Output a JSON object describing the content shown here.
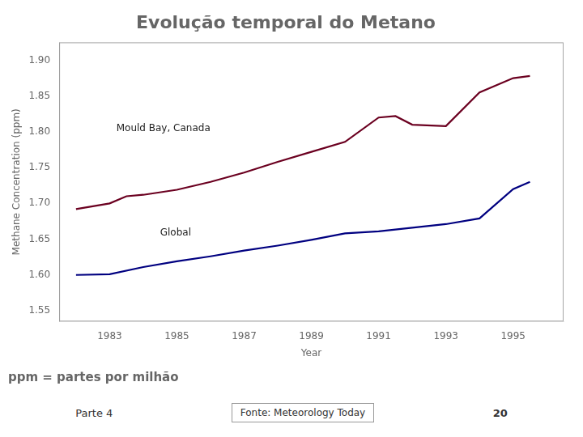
{
  "chart_data": {
    "type": "line",
    "title": "Evolução temporal do Metano",
    "subtitle": "ppm = partes por milhão",
    "x_label": "Year",
    "y_label": "Methane Concentration (ppm)",
    "series": [
      {
        "name": "Global",
        "color": "#000080",
        "x": [
          1982,
          1983,
          1984,
          1985,
          1986,
          1987,
          1988,
          1989,
          1990,
          1991,
          1992,
          1993,
          1994,
          1995,
          1995.5
        ],
        "values": [
          1.6,
          1.601,
          1.611,
          1.619,
          1.626,
          1.634,
          1.641,
          1.649,
          1.658,
          1.661,
          1.666,
          1.671,
          1.679,
          1.72,
          1.73
        ]
      },
      {
        "name": "Mould Bay, Canada",
        "color": "#6B0020",
        "x": [
          1982,
          1983,
          1983.5,
          1984,
          1985,
          1986,
          1987,
          1988,
          1989,
          1990,
          1991,
          1991.5,
          1992,
          1993,
          1994,
          1995,
          1995.5
        ],
        "values": [
          1.692,
          1.7,
          1.71,
          1.712,
          1.719,
          1.73,
          1.743,
          1.758,
          1.772,
          1.786,
          1.82,
          1.822,
          1.81,
          1.808,
          1.855,
          1.875,
          1.878
        ]
      }
    ],
    "annotations": [
      {
        "text": "Mould Bay, Canada",
        "x": 1983.2,
        "y": 1.805
      },
      {
        "text": "Global",
        "x": 1984.5,
        "y": 1.659
      }
    ],
    "notes": [
      "Parte 4",
      "Fonte: Meteorology Today",
      "20"
    ],
    "xlim": [
      1981.5,
      1996.5
    ],
    "xticks": [
      1983,
      1985,
      1987,
      1989,
      1991,
      1993,
      1995
    ],
    "ylim": [
      1.535,
      1.925
    ],
    "yticks": [
      1.55,
      {
        "value": 1.6,
        "label": "1.60"
      },
      1.65,
      {
        "value": 1.7,
        "label": "1.70"
      },
      1.75,
      {
        "value": 1.8,
        "label": "1.80"
      },
      1.85,
      {
        "value": 1.9,
        "label": "1.90"
      }
    ],
    "grid": false
  }
}
